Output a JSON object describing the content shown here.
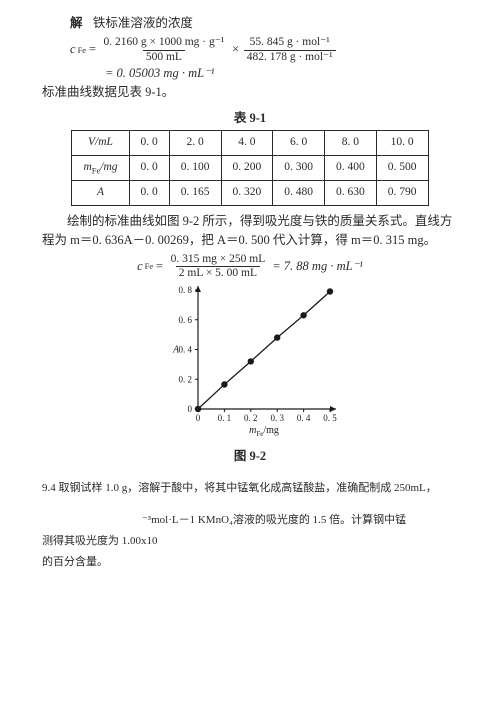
{
  "solution": {
    "intro_prefix": "解",
    "intro_rest": "铁标准溶液的浓度",
    "eq1_lhs": "c",
    "eq1_sub": "Fe",
    "eq1_equals": "=",
    "eq1_a_num": "0. 2160 g × 1000 mg · g⁻¹",
    "eq1_a_den": "500 mL",
    "eq1_times": "×",
    "eq1_b_num": "55. 845 g · mol⁻¹",
    "eq1_b_den": "482. 178 g · mol⁻¹",
    "eq1_result": "= 0. 05003 mg · mL⁻¹",
    "table_intro": "标准曲线数据见表 9-1。"
  },
  "table": {
    "title": "表 9-1",
    "rows": {
      "r1": [
        "V/mL",
        "0. 0",
        "2. 0",
        "4. 0",
        "6. 0",
        "8. 0",
        "10. 0"
      ],
      "r2": [
        "mFe/mg",
        "0. 0",
        "0. 100",
        "0. 200",
        "0. 300",
        "0. 400",
        "0. 500"
      ],
      "r3": [
        "A",
        "0. 0",
        "0. 165",
        "0. 320",
        "0. 480",
        "0. 630",
        "0. 790"
      ]
    }
  },
  "paragraph": {
    "text": "绘制的标准曲线如图 9-2 所示，得到吸光度与铁的质量关系式。直线方程为 m＝0. 636A－0. 00269，把 A＝0. 500 代入计算，得 m＝0. 315 mg。"
  },
  "eq2": {
    "lhs": "c",
    "sub": "Fe",
    "equals": "=",
    "num": "0. 315 mg × 250 mL",
    "den": "2 mL × 5. 00 mL",
    "result": "= 7. 88 mg · mL⁻¹"
  },
  "chart": {
    "type": "scatter-line",
    "xlabel": "mFe/mg",
    "ylabel": "A",
    "x_ticks": [
      "0",
      "0. 1",
      "0. 2",
      "0. 3",
      "0. 4",
      "0. 5"
    ],
    "y_ticks": [
      "0",
      "0. 2",
      "0. 4",
      "0. 6",
      "0. 8"
    ],
    "xlim": [
      0,
      0.5
    ],
    "ylim": [
      0,
      0.8
    ],
    "points_x": [
      0.0,
      0.1,
      0.2,
      0.3,
      0.4,
      0.5
    ],
    "points_y": [
      0.0,
      0.165,
      0.32,
      0.48,
      0.63,
      0.79
    ],
    "line_color": "#1a1a1a",
    "marker_color": "#1a1a1a",
    "marker_size": 3.2,
    "axis_color": "#1a1a1a",
    "tick_fontsize": 9,
    "label_fontsize": 10
  },
  "figure_title": "图 9-2",
  "problem94": {
    "line1": "9.4  取钢试样 1.0 g，溶解于酸中，将其中锰氧化成高锰酸盐，准确配制成 250mL，",
    "line2_part2": "⁻³mol·L－1 KMnO₄溶液的吸光度的  1.5 倍。计算钢中锰",
    "line3": "测得其吸光度为  1.00x10",
    "line4": "的百分含量。"
  }
}
